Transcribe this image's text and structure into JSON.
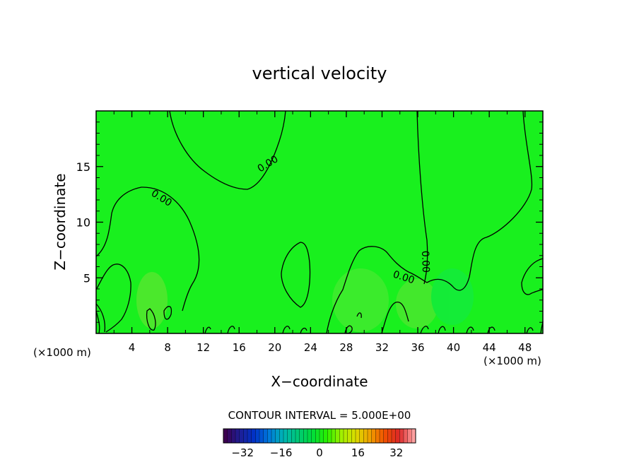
{
  "chart_data": {
    "type": "contour",
    "title": "vertical velocity",
    "xlabel": "X−coordinate",
    "ylabel": "Z−coordinate",
    "x_unit_left": "(×1000 m)",
    "x_unit_right": "(×1000 m)",
    "xlim": [
      0,
      50
    ],
    "ylim": [
      0,
      20
    ],
    "xticks": [
      4,
      8,
      12,
      16,
      20,
      24,
      28,
      32,
      36,
      40,
      44,
      48
    ],
    "yticks": [
      5,
      10,
      15
    ],
    "field_color": "#19f01e",
    "contour_labels": [
      "0.00",
      "0.00",
      "0.00",
      "0.00"
    ],
    "contour_interval_label": "CONTOUR INTERVAL = 5.000E+00",
    "colorbar": {
      "range": [
        -40,
        40
      ],
      "ticks": [
        -32,
        -16,
        0,
        16,
        32
      ],
      "tick_labels": [
        "−32",
        "−16",
        "0",
        "16",
        "32"
      ],
      "colors": [
        "#3c0050",
        "#1e1e96",
        "#0032c8",
        "#0078dc",
        "#00b4b4",
        "#00c878",
        "#00dc3c",
        "#28f000",
        "#a0f000",
        "#dcdc00",
        "#f0a000",
        "#f05000",
        "#dc2828",
        "#ffa0a0"
      ]
    }
  }
}
